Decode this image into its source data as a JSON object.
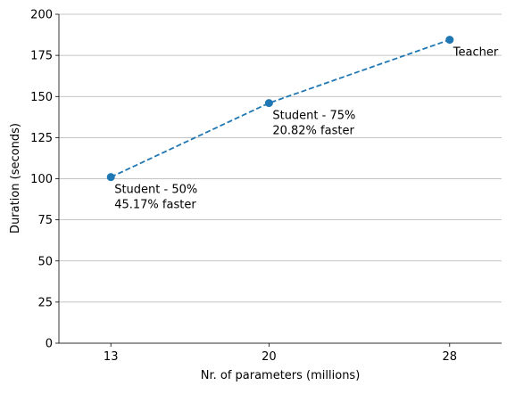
{
  "chart_data": {
    "type": "line",
    "title": "",
    "xlabel": "Nr. of parameters (millions)",
    "ylabel": "Duration (seconds)",
    "x_ticks": [
      13,
      20,
      28
    ],
    "y_ticks": [
      0,
      25,
      50,
      75,
      100,
      125,
      150,
      175,
      200
    ],
    "ylim": [
      0,
      200
    ],
    "xlim": [
      10.7,
      30.3
    ],
    "grid": "horizontal",
    "legend": "none",
    "series": [
      {
        "color": "#1f77b4",
        "line_style": "dashed",
        "marker": "circle",
        "x": [
          13,
          20,
          28
        ],
        "y": [
          101,
          146,
          184.5
        ]
      }
    ],
    "annotations": [
      {
        "x": 13,
        "y": 101,
        "lines": [
          "Student - 50%",
          "45.17% faster"
        ]
      },
      {
        "x": 20,
        "y": 146,
        "lines": [
          "Student - 75%",
          "20.82% faster"
        ]
      },
      {
        "x": 28,
        "y": 184.5,
        "lines": [
          "Teacher"
        ]
      }
    ]
  }
}
